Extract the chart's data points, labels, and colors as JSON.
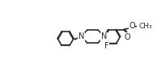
{
  "background_color": "#ffffff",
  "line_color": "#2a2a2a",
  "line_width": 1.2,
  "font_size_label": 7.0,
  "figsize": [
    1.94,
    0.94
  ],
  "dpi": 100,
  "xlim": [
    0.0,
    10.0
  ],
  "ylim": [
    -1.3,
    1.3
  ]
}
